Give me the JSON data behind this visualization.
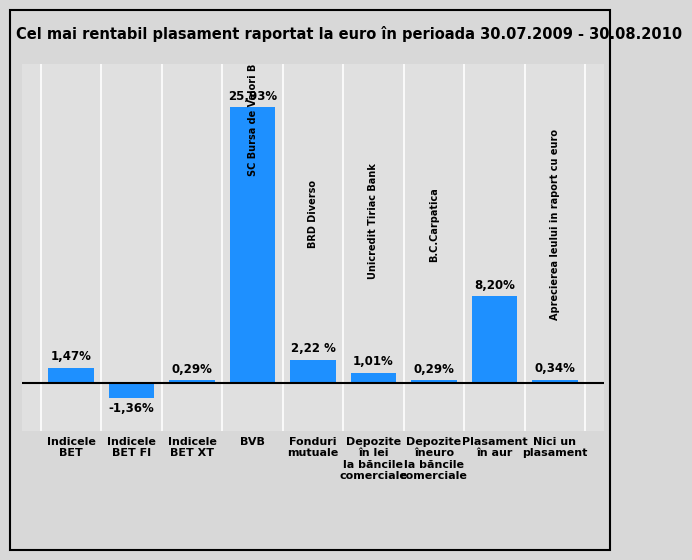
{
  "title": "Cel mai rentabil plasament raportat la euro în perioada 30.07.2009 - 30.08.2010",
  "categories": [
    "Indicele\nBET",
    "Indicele\nBET FI",
    "Indicele\nBET XT",
    "BVB",
    "Fonduri\nmutuale",
    "Depozite\nîn lei\nla băncile\ncomerciale",
    "Depozite\nîneuro\nla băncile\ncomerciale",
    "Plasament\nîn aur",
    "Nici un\nplasament"
  ],
  "values": [
    1.47,
    -1.36,
    0.29,
    25.93,
    2.22,
    1.01,
    0.29,
    8.2,
    0.34
  ],
  "bar_labels": [
    "1,47%",
    "-1,36%",
    "0,29%",
    "25,93%",
    "2,22 %",
    "1,01%",
    "0,29%",
    "8,20%",
    "0,34%"
  ],
  "bar_inner_labels": [
    "SC Bursa de Valori Bucuresti SA",
    "BRD Diverso",
    "Unicredit Tiriac Bank",
    "B.C.Carpatica",
    "Aprecierea leului in raport cu euro"
  ],
  "bar_inner_label_indices": [
    3,
    4,
    5,
    6,
    8
  ],
  "bar_color": "#1E90FF",
  "background_color": "#D8D8D8",
  "plot_bg_color": "#E0E0E0",
  "title_fontsize": 10.5,
  "label_fontsize": 8.5,
  "tick_fontsize": 8,
  "ylim": [
    -4.5,
    30
  ],
  "zero_line_y": 0
}
